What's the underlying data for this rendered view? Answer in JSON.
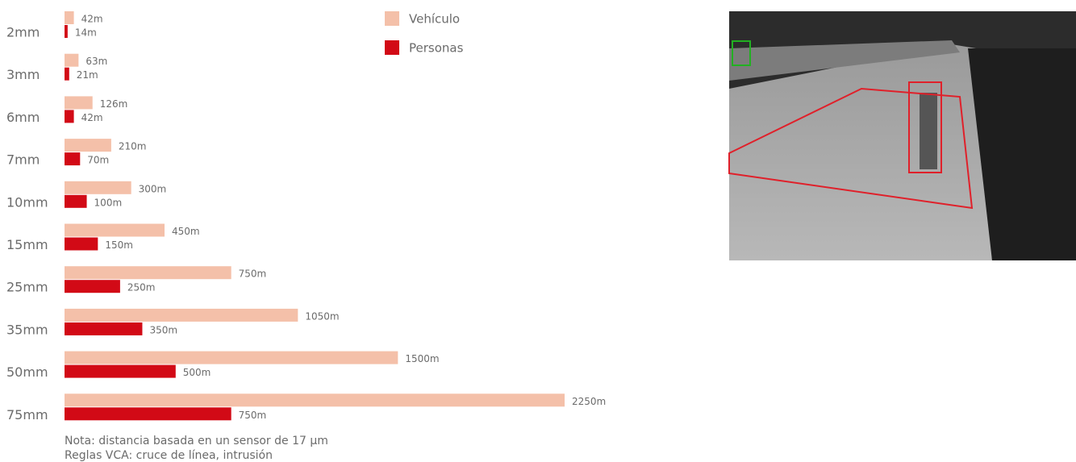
{
  "chart_data": {
    "type": "bar",
    "orientation": "horizontal",
    "categories": [
      "2mm",
      "3mm",
      "6mm",
      "7mm",
      "10mm",
      "15mm",
      "25mm",
      "35mm",
      "50mm",
      "75mm"
    ],
    "series": [
      {
        "name": "Vehículo",
        "color": "#f4c0a9",
        "values": [
          42,
          63,
          126,
          210,
          300,
          450,
          750,
          1050,
          1500,
          2250
        ],
        "value_labels": [
          "42m",
          "63m",
          "126m",
          "210m",
          "300m",
          "450m",
          "750m",
          "1050m",
          "1500m",
          "2250m"
        ]
      },
      {
        "name": "Personas",
        "color": "#d20a16",
        "values": [
          14,
          21,
          42,
          70,
          100,
          150,
          250,
          350,
          500,
          750
        ],
        "value_labels": [
          "14m",
          "21m",
          "42m",
          "70m",
          "100m",
          "150m",
          "250m",
          "350m",
          "500m",
          "750m"
        ]
      }
    ],
    "notes": [
      "Nota: distancia basada en un sensor de 17 µm",
      "Reglas VCA: cruce de línea, intrusión"
    ]
  }
}
